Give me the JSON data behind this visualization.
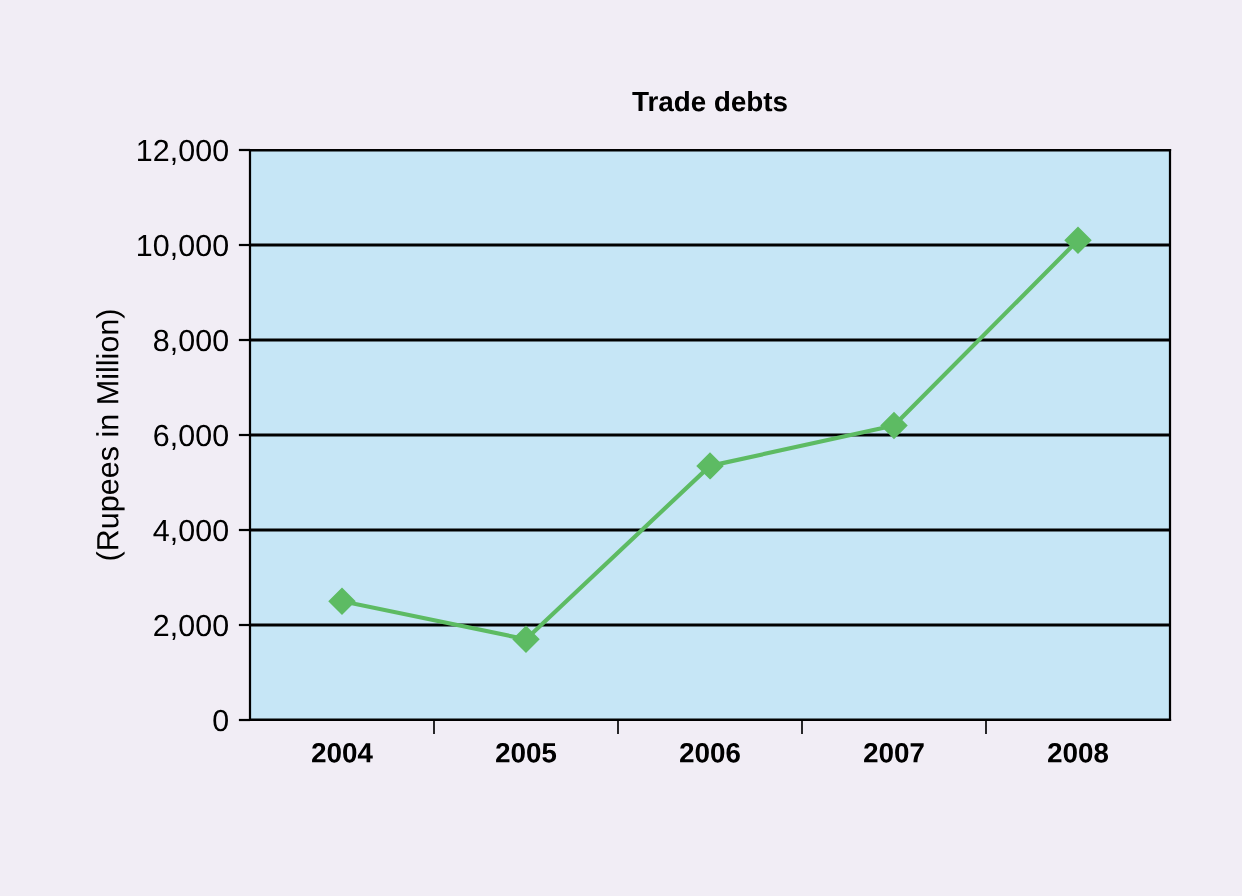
{
  "chart_data": {
    "type": "line",
    "title": "Trade debts",
    "ylabel": "(Rupees in Million)",
    "categories": [
      "2004",
      "2005",
      "2006",
      "2007",
      "2008"
    ],
    "series": [
      {
        "color": "#5dbb63",
        "values": [
          2500,
          1700,
          5350,
          6200,
          10100
        ]
      }
    ],
    "ylim": [
      0,
      12000
    ],
    "yticks": [
      {
        "value": 0,
        "label": "0"
      },
      {
        "value": 2000,
        "label": "2,000"
      },
      {
        "value": 4000,
        "label": "4,000"
      },
      {
        "value": 6000,
        "label": "6,000"
      },
      {
        "value": 8000,
        "label": "8,000"
      },
      {
        "value": 10000,
        "label": "10,000"
      },
      {
        "value": 12000,
        "label": "12,000"
      }
    ],
    "grid": "y",
    "marker": "diamond",
    "line_style": "solid"
  }
}
